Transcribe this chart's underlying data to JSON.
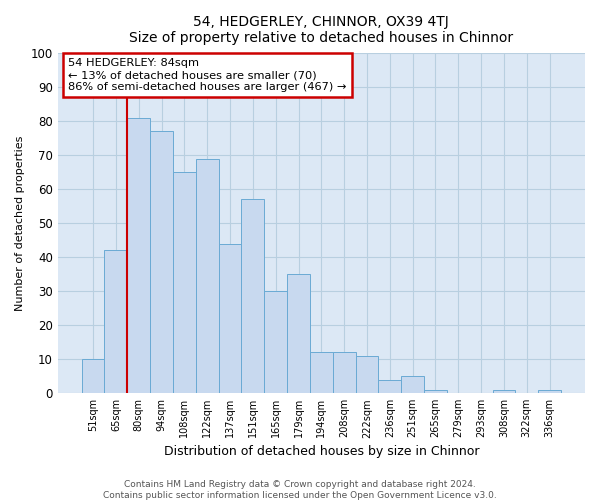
{
  "title": "54, HEDGERLEY, CHINNOR, OX39 4TJ",
  "subtitle": "Size of property relative to detached houses in Chinnor",
  "xlabel": "Distribution of detached houses by size in Chinnor",
  "ylabel": "Number of detached properties",
  "bar_labels": [
    "51sqm",
    "65sqm",
    "80sqm",
    "94sqm",
    "108sqm",
    "122sqm",
    "137sqm",
    "151sqm",
    "165sqm",
    "179sqm",
    "194sqm",
    "208sqm",
    "222sqm",
    "236sqm",
    "251sqm",
    "265sqm",
    "279sqm",
    "293sqm",
    "308sqm",
    "322sqm",
    "336sqm"
  ],
  "bar_values": [
    10,
    42,
    81,
    77,
    65,
    69,
    44,
    57,
    30,
    35,
    12,
    12,
    11,
    4,
    5,
    1,
    0,
    0,
    1,
    0,
    1
  ],
  "bar_color": "#c8d9ef",
  "bar_edge_color": "#6aaad4",
  "vline_color": "#cc0000",
  "annotation_title": "54 HEDGERLEY: 84sqm",
  "annotation_line1": "← 13% of detached houses are smaller (70)",
  "annotation_line2": "86% of semi-detached houses are larger (467) →",
  "annotation_box_color": "#ffffff",
  "annotation_box_edge": "#cc0000",
  "ylim": [
    0,
    100
  ],
  "yticks": [
    0,
    10,
    20,
    30,
    40,
    50,
    60,
    70,
    80,
    90,
    100
  ],
  "grid_color": "#b8cfe0",
  "plot_bg_color": "#dce8f5",
  "fig_bg_color": "#ffffff",
  "footer1": "Contains HM Land Registry data © Crown copyright and database right 2024.",
  "footer2": "Contains public sector information licensed under the Open Government Licence v3.0."
}
